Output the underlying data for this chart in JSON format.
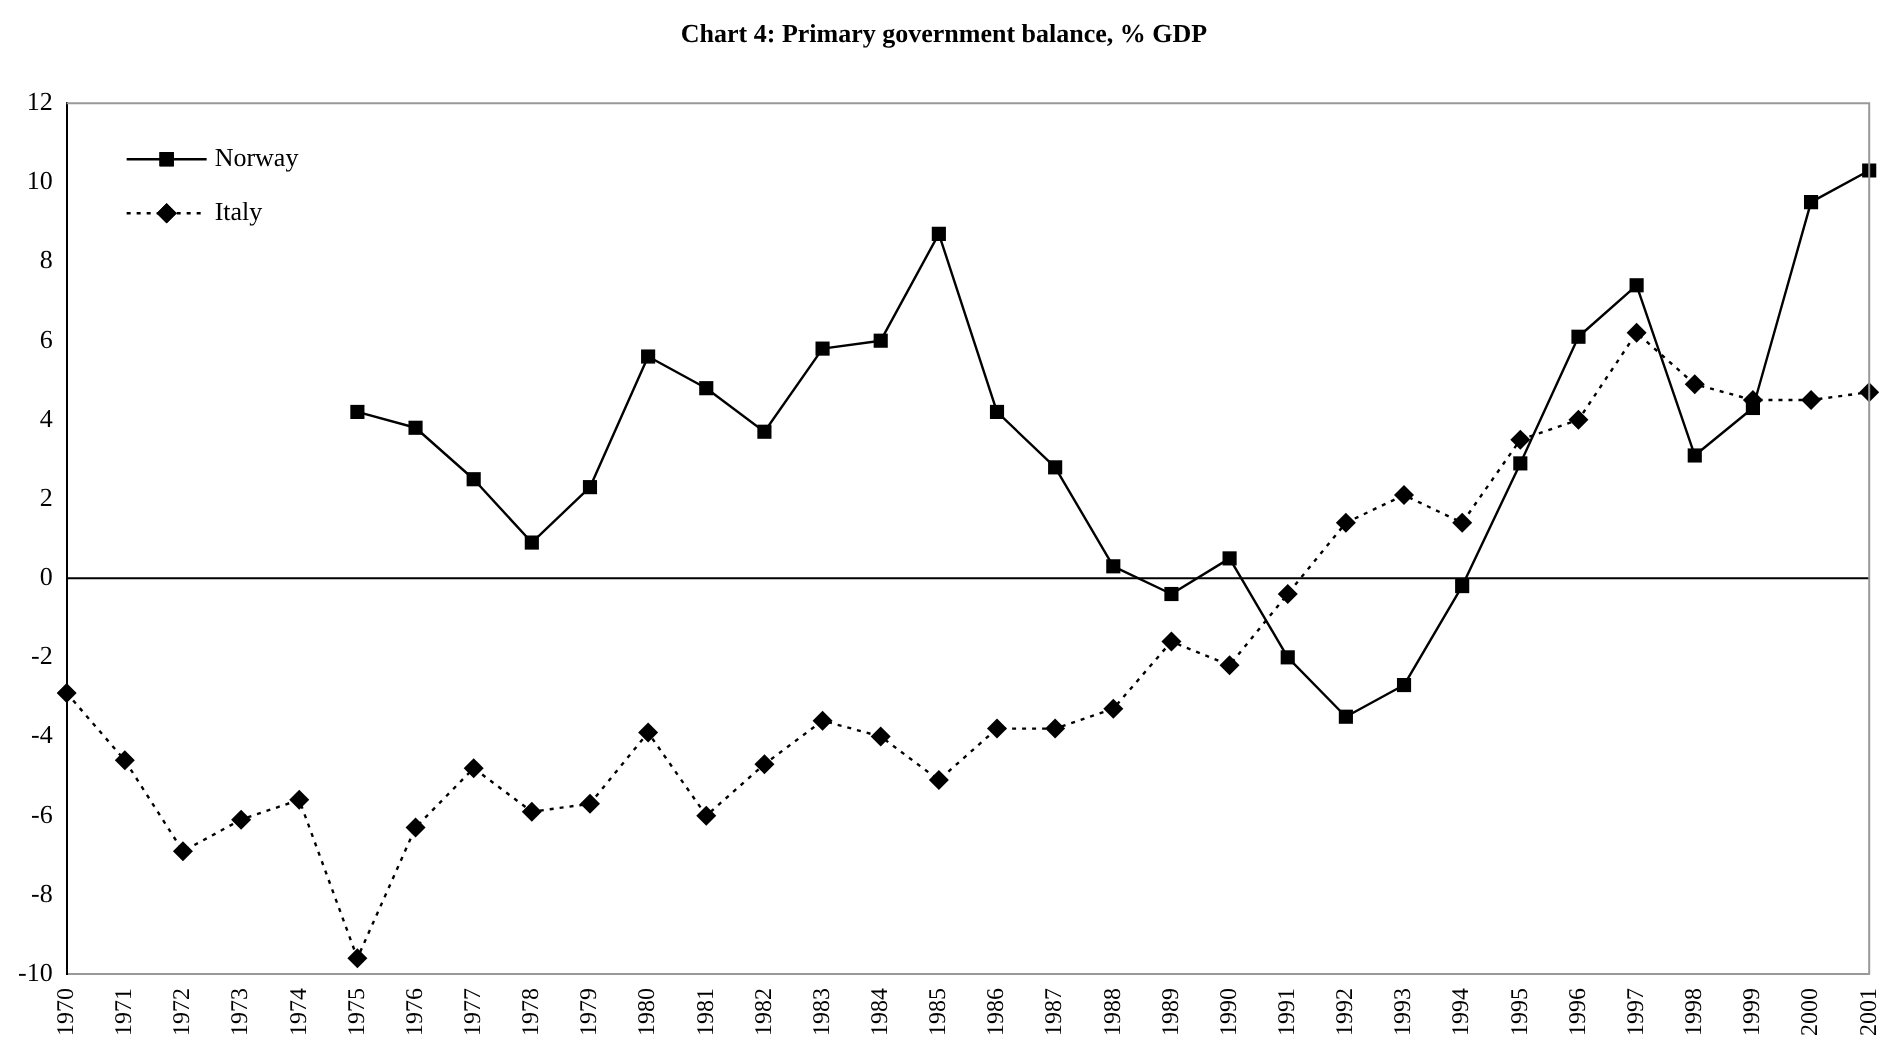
{
  "chart_data": {
    "type": "line",
    "title": "Chart 4: Primary government balance, % GDP",
    "categories": [
      "1970",
      "1971",
      "1972",
      "1973",
      "1974",
      "1975",
      "1976",
      "1977",
      "1978",
      "1979",
      "1980",
      "1981",
      "1982",
      "1983",
      "1984",
      "1985",
      "1986",
      "1987",
      "1988",
      "1989",
      "1990",
      "1991",
      "1992",
      "1993",
      "1994",
      "1995",
      "1996",
      "1997",
      "1998",
      "1999",
      "2000",
      "2001"
    ],
    "series": [
      {
        "name": "Norway",
        "color": "#000000",
        "marker": "square",
        "line_style": "solid",
        "values": [
          null,
          null,
          null,
          null,
          null,
          4.2,
          3.8,
          2.5,
          0.9,
          2.3,
          5.6,
          4.8,
          3.7,
          5.8,
          6.0,
          8.7,
          4.2,
          2.8,
          0.3,
          -0.4,
          0.5,
          -2.0,
          -3.5,
          -2.7,
          -0.2,
          2.9,
          6.1,
          7.4,
          3.1,
          4.3,
          9.5,
          10.3
        ]
      },
      {
        "name": "Italy",
        "color": "#000000",
        "marker": "diamond",
        "line_style": "dotted",
        "values": [
          -2.9,
          -4.6,
          -6.9,
          -6.1,
          -5.6,
          -9.6,
          -6.3,
          -4.8,
          -5.9,
          -5.7,
          -3.9,
          -6.0,
          -4.7,
          -3.6,
          -4.0,
          -5.1,
          -3.8,
          -3.8,
          -3.3,
          -1.6,
          -2.2,
          -0.4,
          1.4,
          2.1,
          1.4,
          3.5,
          4.0,
          6.2,
          4.9,
          4.5,
          4.5,
          4.7
        ]
      }
    ],
    "ylim": [
      -10,
      12
    ],
    "yticks": [
      -10,
      -8,
      -6,
      -4,
      -2,
      0,
      2,
      4,
      6,
      8,
      10,
      12
    ],
    "grid": false,
    "legend": "top left",
    "ref_lines": [
      {
        "axis": "y",
        "value": 0,
        "color": "#000000"
      }
    ]
  }
}
